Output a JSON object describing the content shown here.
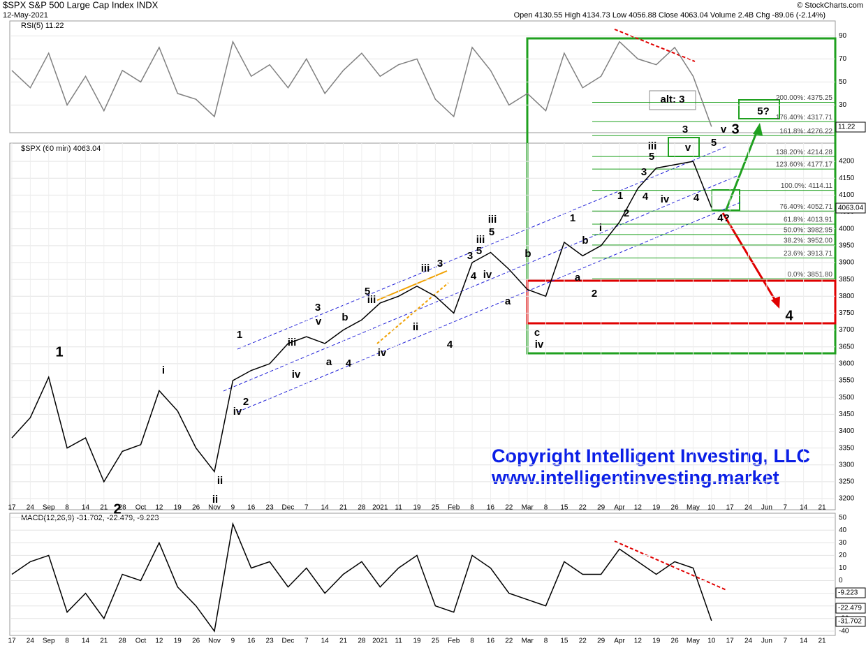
{
  "chart_data": {
    "type": "line",
    "title": "$SPX S&P 500 Large Cap Index INDX",
    "date": "12-May-2021",
    "source": "© StockCharts.com",
    "quote": "Open 4130.55 High 4134.73 Low 4056.88 Close 4063.04 Volume 2.4B Chg -89.06 (-2.14%)",
    "rsi_label": "RSI(5) 11.22",
    "price_label": "$SPX (60 min) 4063.04",
    "macd_label": "MACD(12,26,9) -31.702, -22.479, -9.223",
    "last_tags": {
      "rsi": "11.22",
      "price": "4063.04",
      "macd": "-9.223",
      "signal": "-22.479",
      "line": "-31.702"
    },
    "copyright": [
      "Copyright Intelligent Investing, LLC",
      "www.intelligentinvesting.market"
    ],
    "categories": [
      "17",
      "24",
      "Sep",
      "8",
      "14",
      "21",
      "28",
      "Oct",
      "12",
      "19",
      "26",
      "Nov",
      "9",
      "16",
      "23",
      "Dec",
      "7",
      "14",
      "21",
      "28",
      "2021",
      "11",
      "19",
      "25",
      "Feb",
      "8",
      "16",
      "22",
      "Mar",
      "8",
      "15",
      "22",
      "29",
      "Apr",
      "12",
      "19",
      "26",
      "May",
      "10",
      "17",
      "24",
      "Jun",
      "7",
      "14",
      "21"
    ],
    "series": [
      {
        "name": "$SPX",
        "color": "#000000",
        "values": [
          3380,
          3440,
          3560,
          3350,
          3380,
          3250,
          3340,
          3360,
          3520,
          3460,
          3350,
          3280,
          3550,
          3580,
          3600,
          3660,
          3680,
          3660,
          3700,
          3730,
          3780,
          3800,
          3830,
          3800,
          3750,
          3900,
          3930,
          3880,
          3820,
          3800,
          3960,
          3920,
          3950,
          4020,
          4120,
          4180,
          4190,
          4200,
          4063,
          null,
          null,
          null,
          null,
          null,
          null
        ]
      },
      {
        "name": "RSI",
        "color": "#808080",
        "values": [
          60,
          45,
          75,
          30,
          55,
          25,
          60,
          50,
          80,
          40,
          35,
          20,
          85,
          55,
          65,
          45,
          70,
          40,
          60,
          75,
          55,
          65,
          70,
          35,
          20,
          80,
          60,
          30,
          40,
          25,
          75,
          45,
          55,
          85,
          70,
          65,
          80,
          55,
          11.22,
          null,
          null,
          null,
          null,
          null,
          null
        ]
      },
      {
        "name": "MACD",
        "color": "#000000",
        "values": [
          5,
          15,
          20,
          -25,
          -10,
          -30,
          5,
          0,
          30,
          -5,
          -20,
          -40,
          45,
          10,
          15,
          -5,
          10,
          -10,
          5,
          15,
          -5,
          10,
          20,
          -20,
          -25,
          20,
          10,
          -10,
          -15,
          -20,
          15,
          5,
          5,
          25,
          15,
          5,
          15,
          10,
          -31.702,
          null,
          null,
          null,
          null,
          null,
          null
        ]
      }
    ],
    "ylim": [
      3167,
      4254
    ],
    "yticks": [
      3200,
      3250,
      3300,
      3350,
      3400,
      3450,
      3500,
      3550,
      3600,
      3650,
      3700,
      3750,
      3800,
      3850,
      3900,
      3950,
      4000,
      4050,
      4100,
      4150,
      4200
    ],
    "rsi_ylim": [
      6,
      103
    ],
    "rsi_yticks": [
      30,
      50,
      70,
      90
    ],
    "macd_ylim": [
      -43.4,
      53.4
    ],
    "macd_yticks": [
      -40,
      -30,
      -20,
      -10,
      0,
      10,
      20,
      30,
      40,
      50
    ],
    "fib_levels": [
      {
        "value": 4375.25,
        "label": "200.00%: 4375.25"
      },
      {
        "value": 4317.71,
        "label": "176.40%: 4317.71"
      },
      {
        "value": 4276.22,
        "label": "161.8%: 4276.22"
      },
      {
        "value": 4214.28,
        "label": "138.20%: 4214.28"
      },
      {
        "value": 4177.17,
        "label": "123.60%: 4177.17"
      },
      {
        "value": 4114.11,
        "label": "100.0%: 4114.11"
      },
      {
        "value": 4052.71,
        "label": "76.40%: 4052.71"
      },
      {
        "value": 4013.91,
        "label": "61.8%: 4013.91"
      },
      {
        "value": 3982.95,
        "label": "50.0%: 3982.95"
      },
      {
        "value": 3952.0,
        "label": "38.2%: 3952.00"
      },
      {
        "value": 3913.71,
        "label": "23.6%: 3913.71"
      },
      {
        "value": 3851.8,
        "label": "0.0%: 3851.80"
      }
    ],
    "annotations": [
      {
        "text": "1",
        "color": "#000000"
      },
      {
        "text": "2",
        "color": "#000000"
      },
      {
        "text": "i",
        "color": "#d10000"
      },
      {
        "text": "ii",
        "color": "#d10000"
      },
      {
        "text": "iii",
        "color": "#d10000"
      },
      {
        "text": "iv",
        "color": "#d10000"
      },
      {
        "text": "v",
        "color": "#d10000"
      },
      {
        "text": "3",
        "color": "#000000"
      },
      {
        "text": "4",
        "color": "#000000"
      },
      {
        "text": "1",
        "color": "#2e8b18"
      },
      {
        "text": "2",
        "color": "#2e8b18"
      },
      {
        "text": "3",
        "color": "#2e8b18"
      },
      {
        "text": "4",
        "color": "#2e8b18"
      },
      {
        "text": "5",
        "color": "#2e8b18"
      },
      {
        "text": "1",
        "color": "#2e8b18"
      },
      {
        "text": "2",
        "color": "#2e8b18"
      },
      {
        "text": "3",
        "color": "#2e8b18"
      },
      {
        "text": "4",
        "color": "#2e8b18"
      },
      {
        "text": "5",
        "color": "#2e8b18"
      },
      {
        "text": "4?",
        "color": "#2e8b18"
      },
      {
        "text": "5?",
        "color": "#2e8b18"
      },
      {
        "text": "a",
        "color": "#2e8b18"
      },
      {
        "text": "b",
        "color": "#2e8b18"
      },
      {
        "text": "c",
        "color": "#2e8b18"
      },
      {
        "text": "3",
        "color": "#f0a000"
      },
      {
        "text": "4",
        "color": "#f0a000"
      },
      {
        "text": "5",
        "color": "#f0a000"
      },
      {
        "text": "3",
        "color": "#f0a000"
      },
      {
        "text": "4",
        "color": "#f0a000"
      },
      {
        "text": "5",
        "color": "#f0a000"
      },
      {
        "text": "1",
        "color": "#f0a000"
      },
      {
        "text": "2",
        "color": "#f0a000"
      },
      {
        "text": "3",
        "color": "#f0a000"
      },
      {
        "text": "4",
        "color": "#f0a000"
      },
      {
        "text": "5",
        "color": "#f0a000"
      },
      {
        "text": "v",
        "color": "#1010c8"
      },
      {
        "text": "b",
        "color": "#1010c8"
      },
      {
        "text": "a",
        "color": "#1010c8"
      },
      {
        "text": "iii",
        "color": "#1010c8"
      },
      {
        "text": "iv",
        "color": "#1010c8"
      },
      {
        "text": "iii",
        "color": "#666666"
      },
      {
        "text": "iv",
        "color": "#666666"
      },
      {
        "text": "ii",
        "color": "#666666"
      },
      {
        "text": "iii",
        "color": "#666666"
      },
      {
        "text": "iii",
        "color": "#666666"
      },
      {
        "text": "iv",
        "color": "#666666"
      },
      {
        "text": "iii",
        "color": "#666666"
      },
      {
        "text": "iv",
        "color": "#666666"
      },
      {
        "text": "v",
        "color": "#666666"
      },
      {
        "text": "i",
        "color": "#666666"
      },
      {
        "text": "b",
        "color": "#666666"
      },
      {
        "text": "a",
        "color": "#666666"
      },
      {
        "text": "ii",
        "color": "#666666"
      },
      {
        "text": "iv",
        "color": "#666666"
      },
      {
        "text": "alt: 3",
        "color": "#2e8b18"
      }
    ]
  }
}
